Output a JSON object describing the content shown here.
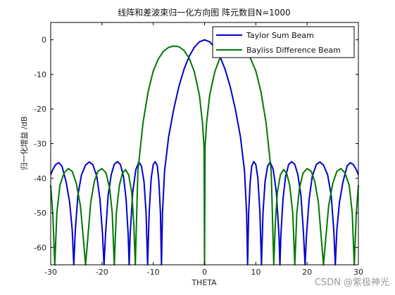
{
  "chart_data": {
    "type": "line",
    "title": "线阵和差波束归一化方向图 阵元数目N=1000",
    "xlabel": "THETA",
    "ylabel": "归一化增益 /dB",
    "xlim": [
      -30,
      30
    ],
    "ylim": [
      -65,
      5
    ],
    "xticks": [
      -30,
      -20,
      -10,
      0,
      10,
      20,
      30
    ],
    "yticks": [
      0,
      -10,
      -20,
      -30,
      -40,
      -50,
      -60
    ],
    "grid": false,
    "legend_position": "top-right",
    "series": [
      {
        "name": "Taylor Sum Beam",
        "color": "#0000cc",
        "points": [
          [
            -30,
            -39
          ],
          [
            -29.6,
            -37.5
          ],
          [
            -29,
            -36
          ],
          [
            -28.4,
            -35.5
          ],
          [
            -27.8,
            -36.5
          ],
          [
            -27,
            -41
          ],
          [
            -26.3,
            -47
          ],
          [
            -25.8,
            -55
          ],
          [
            -25.5,
            -65
          ],
          [
            -25.2,
            -55
          ],
          [
            -24.7,
            -45
          ],
          [
            -24,
            -39
          ],
          [
            -23.2,
            -36.2
          ],
          [
            -22.5,
            -35.3
          ],
          [
            -21.8,
            -36
          ],
          [
            -21,
            -39.5
          ],
          [
            -20.4,
            -46
          ],
          [
            -19.9,
            -56
          ],
          [
            -19.6,
            -65
          ],
          [
            -19.3,
            -56
          ],
          [
            -18.8,
            -45
          ],
          [
            -18.2,
            -39
          ],
          [
            -17.6,
            -36
          ],
          [
            -17,
            -35.2
          ],
          [
            -16.4,
            -36
          ],
          [
            -15.8,
            -39.5
          ],
          [
            -15.3,
            -46
          ],
          [
            -14.9,
            -56
          ],
          [
            -14.7,
            -65
          ],
          [
            -14.5,
            -56
          ],
          [
            -14,
            -44
          ],
          [
            -13.4,
            -37.5
          ],
          [
            -12.8,
            -35.3
          ],
          [
            -12.3,
            -36.5
          ],
          [
            -11.8,
            -41
          ],
          [
            -11.4,
            -50
          ],
          [
            -11.1,
            -65
          ],
          [
            -10.8,
            -50
          ],
          [
            -10.4,
            -40
          ],
          [
            -10,
            -36
          ],
          [
            -9.6,
            -35.2
          ],
          [
            -9.2,
            -36.5
          ],
          [
            -8.9,
            -41
          ],
          [
            -8.6,
            -50
          ],
          [
            -8.4,
            -65
          ],
          [
            -8.2,
            -50
          ],
          [
            -7.8,
            -38
          ],
          [
            -7,
            -28
          ],
          [
            -6,
            -20
          ],
          [
            -5,
            -13.5
          ],
          [
            -4,
            -8.5
          ],
          [
            -3,
            -4.8
          ],
          [
            -2,
            -2.2
          ],
          [
            -1,
            -0.6
          ],
          [
            0,
            0
          ],
          [
            1,
            -0.6
          ],
          [
            2,
            -2.2
          ],
          [
            3,
            -4.8
          ],
          [
            4,
            -8.5
          ],
          [
            5,
            -13.5
          ],
          [
            6,
            -20
          ],
          [
            7,
            -28
          ],
          [
            7.8,
            -38
          ],
          [
            8.2,
            -50
          ],
          [
            8.4,
            -65
          ],
          [
            8.6,
            -50
          ],
          [
            8.9,
            -41
          ],
          [
            9.2,
            -36.5
          ],
          [
            9.6,
            -35.2
          ],
          [
            10,
            -36
          ],
          [
            10.4,
            -40
          ],
          [
            10.8,
            -50
          ],
          [
            11.1,
            -65
          ],
          [
            11.4,
            -50
          ],
          [
            11.8,
            -41
          ],
          [
            12.3,
            -36.5
          ],
          [
            12.8,
            -35.3
          ],
          [
            13.4,
            -37.5
          ],
          [
            14,
            -44
          ],
          [
            14.5,
            -56
          ],
          [
            14.7,
            -65
          ],
          [
            14.9,
            -56
          ],
          [
            15.3,
            -46
          ],
          [
            15.8,
            -39.5
          ],
          [
            16.4,
            -36
          ],
          [
            17,
            -35.2
          ],
          [
            17.6,
            -36
          ],
          [
            18.2,
            -39
          ],
          [
            18.8,
            -45
          ],
          [
            19.3,
            -56
          ],
          [
            19.6,
            -65
          ],
          [
            19.9,
            -56
          ],
          [
            20.4,
            -46
          ],
          [
            21,
            -39.5
          ],
          [
            21.8,
            -36
          ],
          [
            22.5,
            -35.3
          ],
          [
            23.2,
            -36.2
          ],
          [
            24,
            -39
          ],
          [
            24.7,
            -45
          ],
          [
            25.2,
            -55
          ],
          [
            25.5,
            -65
          ],
          [
            25.8,
            -55
          ],
          [
            26.3,
            -47
          ],
          [
            27,
            -41
          ],
          [
            27.8,
            -36.5
          ],
          [
            28.4,
            -35.5
          ],
          [
            29,
            -36
          ],
          [
            29.6,
            -37.5
          ],
          [
            30,
            -39
          ]
        ]
      },
      {
        "name": "Bayliss Difference Beam",
        "color": "#007700",
        "points": [
          [
            -30,
            -42
          ],
          [
            -29.6,
            -50
          ],
          [
            -29.2,
            -65
          ],
          [
            -28.8,
            -50
          ],
          [
            -28.2,
            -42
          ],
          [
            -27.4,
            -38.5
          ],
          [
            -26.6,
            -37.2
          ],
          [
            -25.8,
            -38
          ],
          [
            -25,
            -41.5
          ],
          [
            -24.2,
            -48
          ],
          [
            -23.6,
            -58
          ],
          [
            -23.2,
            -65
          ],
          [
            -22.8,
            -58
          ],
          [
            -22.2,
            -47
          ],
          [
            -21.5,
            -41
          ],
          [
            -20.8,
            -38
          ],
          [
            -20,
            -37.2
          ],
          [
            -19.2,
            -38.5
          ],
          [
            -18.5,
            -43
          ],
          [
            -18,
            -50
          ],
          [
            -17.6,
            -65
          ],
          [
            -17.2,
            -50
          ],
          [
            -16.6,
            -42
          ],
          [
            -16,
            -38.5
          ],
          [
            -15.4,
            -37.5
          ],
          [
            -14.8,
            -39
          ],
          [
            -14.2,
            -44
          ],
          [
            -13.8,
            -53
          ],
          [
            -13.5,
            -65
          ],
          [
            -13,
            -38
          ],
          [
            -12,
            -24
          ],
          [
            -11,
            -15
          ],
          [
            -10,
            -9
          ],
          [
            -9,
            -5.5
          ],
          [
            -8,
            -3.3
          ],
          [
            -7,
            -2.2
          ],
          [
            -6,
            -1.8
          ],
          [
            -5,
            -2.0
          ],
          [
            -4,
            -3.1
          ],
          [
            -3,
            -5.3
          ],
          [
            -2,
            -9.2
          ],
          [
            -1,
            -16
          ],
          [
            -0.4,
            -24
          ],
          [
            -0.1,
            -31
          ],
          [
            0,
            -65
          ],
          [
            0.1,
            -31
          ],
          [
            0.4,
            -24
          ],
          [
            1,
            -16
          ],
          [
            2,
            -9.2
          ],
          [
            3,
            -5.3
          ],
          [
            4,
            -3.1
          ],
          [
            5,
            -2.0
          ],
          [
            6,
            -1.8
          ],
          [
            7,
            -2.2
          ],
          [
            8,
            -3.3
          ],
          [
            9,
            -5.5
          ],
          [
            10,
            -9
          ],
          [
            11,
            -15
          ],
          [
            12,
            -24
          ],
          [
            13,
            -38
          ],
          [
            13.5,
            -65
          ],
          [
            13.8,
            -53
          ],
          [
            14.2,
            -44
          ],
          [
            14.8,
            -39
          ],
          [
            15.4,
            -37.5
          ],
          [
            16,
            -38.5
          ],
          [
            16.6,
            -42
          ],
          [
            17.2,
            -50
          ],
          [
            17.6,
            -65
          ],
          [
            18,
            -50
          ],
          [
            18.5,
            -43
          ],
          [
            19.2,
            -38.5
          ],
          [
            20,
            -37.2
          ],
          [
            20.8,
            -38
          ],
          [
            21.5,
            -41
          ],
          [
            22.2,
            -47
          ],
          [
            22.8,
            -58
          ],
          [
            23.2,
            -65
          ],
          [
            23.6,
            -58
          ],
          [
            24.2,
            -48
          ],
          [
            25,
            -41.5
          ],
          [
            25.8,
            -38
          ],
          [
            26.6,
            -37.2
          ],
          [
            27.4,
            -38.5
          ],
          [
            28.2,
            -42
          ],
          [
            28.8,
            -50
          ],
          [
            29.2,
            -65
          ],
          [
            29.6,
            -50
          ],
          [
            30,
            -42
          ]
        ]
      }
    ]
  },
  "watermark": "CSDN @紫极神光"
}
